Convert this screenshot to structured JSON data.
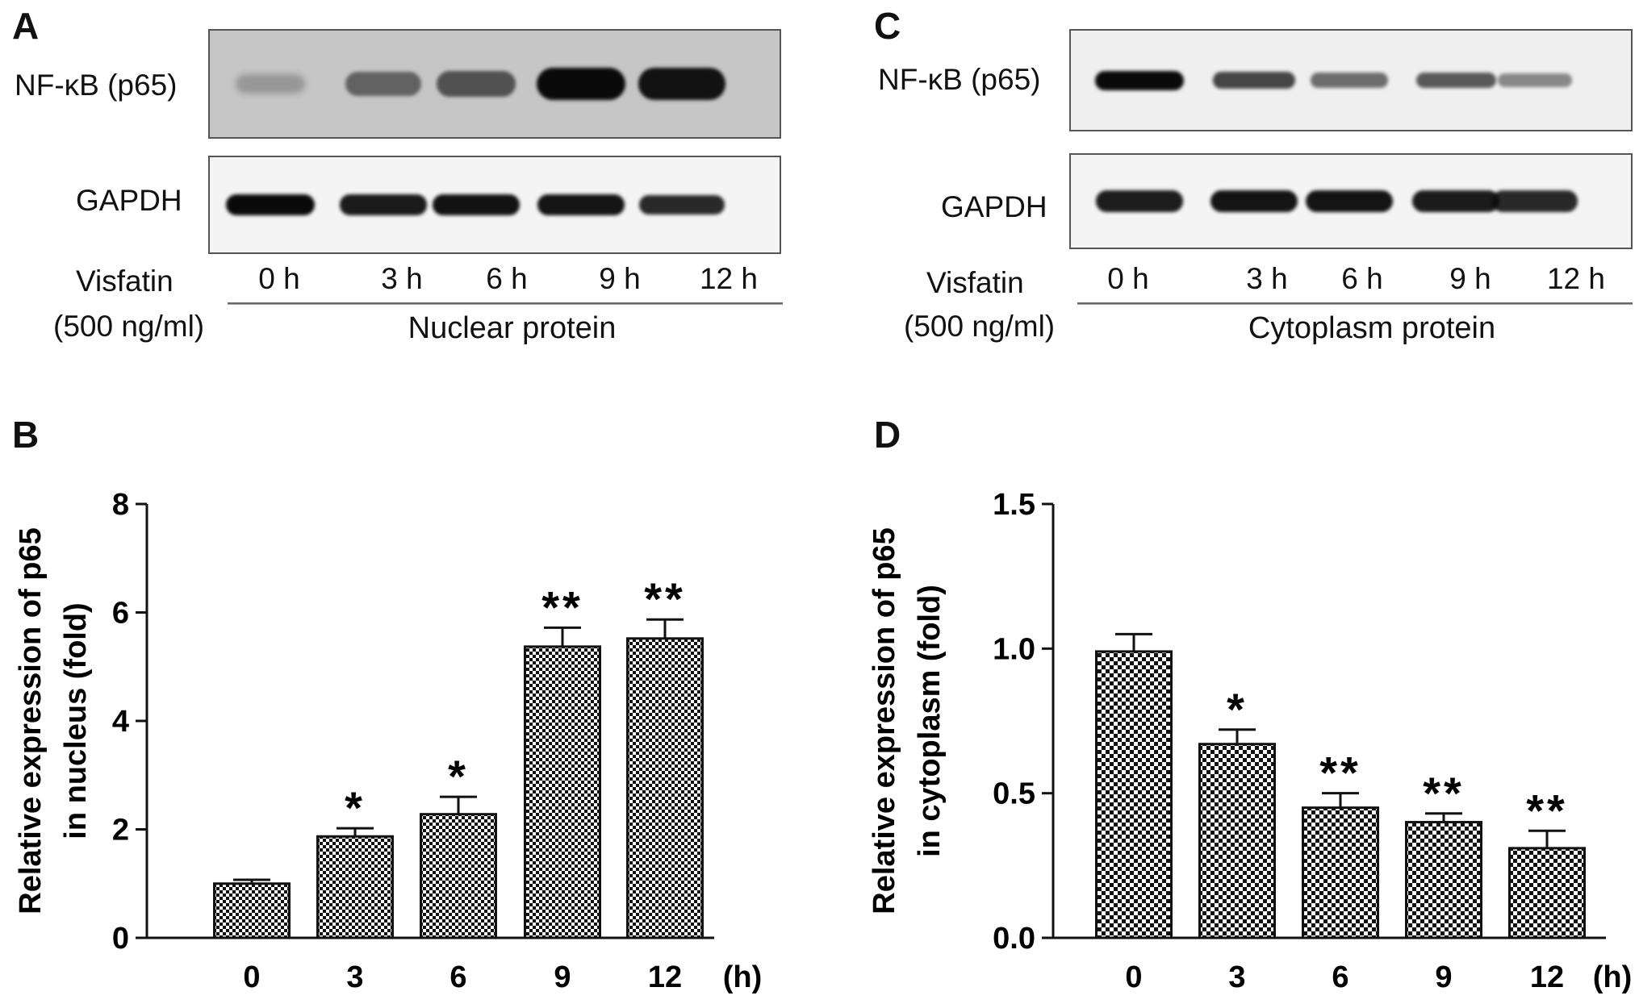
{
  "panels": {
    "a": {
      "letter": "A",
      "band_labels": [
        "NF-κB (p65)",
        "GAPDH"
      ],
      "treatment_label": [
        "Visfatin",
        "(500 ng/ml)"
      ],
      "lanes": [
        "0 h",
        "3 h",
        "6 h",
        "9 h",
        "12 h"
      ],
      "group_label": "Nuclear protein",
      "intensity": {
        "p65": [
          0.12,
          0.45,
          0.55,
          1.0,
          0.95
        ],
        "gapdh": [
          1.0,
          0.92,
          0.96,
          0.95,
          0.85
        ]
      }
    },
    "c": {
      "letter": "C",
      "band_labels": [
        "NF-κB (p65)",
        "GAPDH"
      ],
      "treatment_label": [
        "Visfatin",
        "(500 ng/ml)"
      ],
      "lanes": [
        "0 h",
        "3 h",
        "6 h",
        "9 h",
        "12 h"
      ],
      "group_label": "Cytoplasm protein",
      "intensity": {
        "p65": [
          1.0,
          0.7,
          0.5,
          0.6,
          0.35
        ],
        "gapdh": [
          0.9,
          0.95,
          0.95,
          0.92,
          0.85
        ]
      }
    },
    "b": {
      "letter": "B"
    },
    "d": {
      "letter": "D"
    }
  },
  "chart_data": [
    {
      "type": "bar",
      "panel": "B",
      "categories": [
        "0",
        "3",
        "6",
        "9",
        "12"
      ],
      "x_unit": "(h)",
      "values": [
        1.0,
        1.87,
        2.28,
        5.37,
        5.52
      ],
      "errors": [
        0.07,
        0.15,
        0.32,
        0.35,
        0.35
      ],
      "significance": [
        "",
        "*",
        "*",
        "**",
        "**"
      ],
      "ylabel": [
        "Relative expression of p65",
        "in nucleus (fold)"
      ],
      "ylim": [
        0,
        8
      ],
      "yticks": [
        0,
        2,
        4,
        6,
        8
      ],
      "grid": false,
      "bar_pattern": "checkerboard"
    },
    {
      "type": "bar",
      "panel": "D",
      "categories": [
        "0",
        "3",
        "6",
        "9",
        "12"
      ],
      "x_unit": "(h)",
      "values": [
        0.99,
        0.67,
        0.45,
        0.4,
        0.31
      ],
      "errors": [
        0.06,
        0.05,
        0.05,
        0.03,
        0.06
      ],
      "significance": [
        "",
        "*",
        "**",
        "**",
        "**"
      ],
      "ylabel": [
        "Relative expression of p65",
        "in cytoplasm (fold)"
      ],
      "ylim": [
        0,
        1.5
      ],
      "yticks": [
        "0.0",
        "0.5",
        "1.0",
        "1.5"
      ],
      "grid": false,
      "bar_pattern": "checkerboard"
    }
  ]
}
